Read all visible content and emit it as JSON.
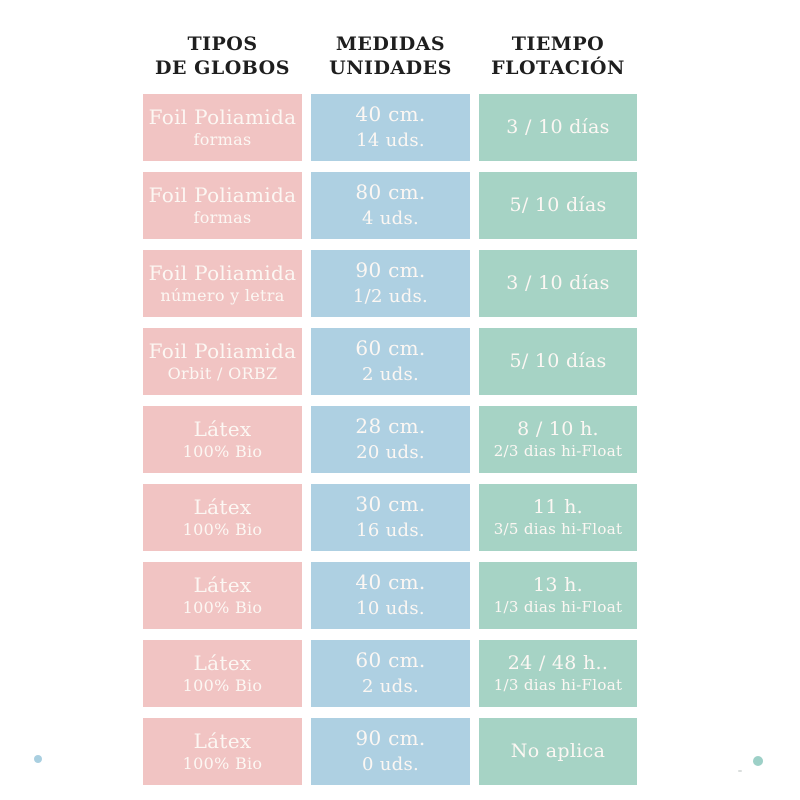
{
  "table": {
    "columns": [
      {
        "key": "tipos",
        "header": [
          "TIPOS",
          "DE GLOBOS"
        ]
      },
      {
        "key": "medidas",
        "header": [
          "MEDIDAS",
          "UNIDADES"
        ]
      },
      {
        "key": "tiempo",
        "header": [
          "TIEMPO",
          "FLOTACIÓN"
        ]
      }
    ],
    "rows": [
      {
        "tipos": [
          "Foil Poliamida",
          "formas"
        ],
        "medidas": [
          "40 cm.",
          "14 uds."
        ],
        "tiempo": [
          "3 / 10 días"
        ]
      },
      {
        "tipos": [
          "Foil Poliamida",
          "formas"
        ],
        "medidas": [
          "80 cm.",
          "4 uds."
        ],
        "tiempo": [
          "5/ 10 días"
        ]
      },
      {
        "tipos": [
          "Foil Poliamida",
          "número y letra"
        ],
        "medidas": [
          "90 cm.",
          "1/2 uds."
        ],
        "tiempo": [
          "3 / 10 días"
        ]
      },
      {
        "tipos": [
          "Foil Poliamida",
          "Orbit / ORBZ"
        ],
        "medidas": [
          "60 cm.",
          "2 uds."
        ],
        "tiempo": [
          "5/ 10 días"
        ]
      },
      {
        "tipos": [
          "Látex",
          "100% Bio"
        ],
        "medidas": [
          "28 cm.",
          "20 uds."
        ],
        "tiempo": [
          "8 / 10 h.",
          "2/3 dias hi-Float"
        ]
      },
      {
        "tipos": [
          "Látex",
          "100% Bio"
        ],
        "medidas": [
          "30 cm.",
          "16 uds."
        ],
        "tiempo": [
          "11 h.",
          "3/5 dias hi-Float"
        ]
      },
      {
        "tipos": [
          "Látex",
          "100% Bio"
        ],
        "medidas": [
          "40 cm.",
          "10 uds."
        ],
        "tiempo": [
          "13 h.",
          "1/3 dias hi-Float"
        ]
      },
      {
        "tipos": [
          "Látex",
          "100% Bio"
        ],
        "medidas": [
          "60 cm.",
          "2 uds."
        ],
        "tiempo": [
          "24 / 48 h..",
          "1/3 dias hi-Float"
        ]
      },
      {
        "tipos": [
          "Látex",
          "100% Bio"
        ],
        "medidas": [
          "90 cm.",
          "0 uds."
        ],
        "tiempo": [
          "No aplica"
        ]
      }
    ]
  },
  "chart_data": {
    "type": "table",
    "title": "",
    "columns": [
      "TIPOS DE GLOBOS",
      "MEDIDAS UNIDADES",
      "TIEMPO FLOTACIÓN"
    ],
    "rows": [
      [
        "Foil Poliamida formas",
        "40 cm. 14 uds.",
        "3 / 10 días"
      ],
      [
        "Foil Poliamida formas",
        "80 cm. 4 uds.",
        "5/ 10 días"
      ],
      [
        "Foil Poliamida número y letra",
        "90 cm. 1/2 uds.",
        "3 / 10 días"
      ],
      [
        "Foil Poliamida Orbit / ORBZ",
        "60 cm. 2 uds.",
        "5/ 10 días"
      ],
      [
        "Látex 100% Bio",
        "28 cm. 20 uds.",
        "8 / 10 h. 2/3 dias hi-Float"
      ],
      [
        "Látex 100% Bio",
        "30 cm. 16 uds.",
        "11 h. 3/5 dias hi-Float"
      ],
      [
        "Látex 100% Bio",
        "40 cm. 10 uds.",
        "13 h. 1/3 dias hi-Float"
      ],
      [
        "Látex 100% Bio",
        "60 cm. 2 uds.",
        "24 / 48 h.. 1/3 dias hi-Float"
      ],
      [
        "Látex 100% Bio",
        "90 cm. 0 uds.",
        "No aplica"
      ]
    ]
  },
  "colors": {
    "page_bg": "#ffffff",
    "header_text": "#1e1e1e",
    "cell_text": "#fcf7f3",
    "tipos_cell": "#f1c4c3",
    "medidas_cell": "#aed0e2",
    "tiempo_cell": "#a6d3c5",
    "dot_blue": "#a9cfe0",
    "dot_teal": "#9dd0c7"
  }
}
